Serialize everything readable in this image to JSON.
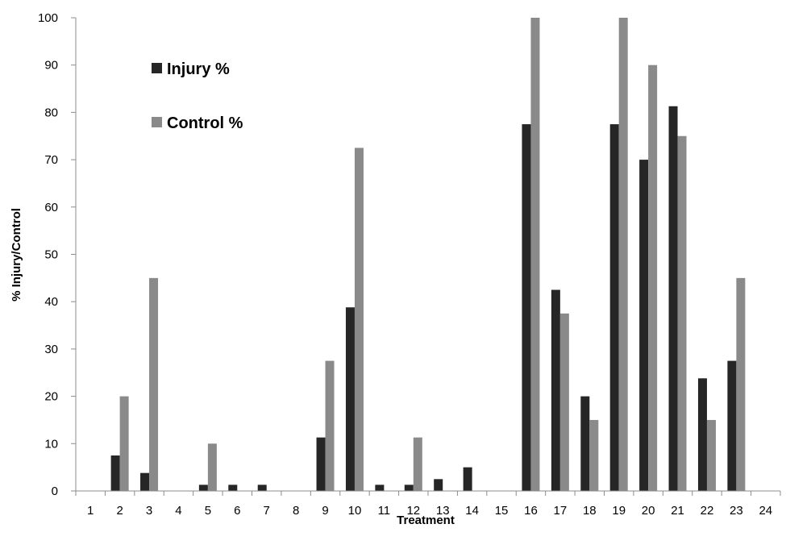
{
  "chart_data": {
    "type": "bar",
    "title": "",
    "xlabel": "Treatment",
    "ylabel": "% Injury/Control",
    "ylim": [
      0,
      100
    ],
    "yticks": [
      "0",
      "10",
      "20",
      "30",
      "40",
      "50",
      "60",
      "70",
      "80",
      "90",
      "100"
    ],
    "grid": false,
    "legend_position": "top-left",
    "categories": [
      "1",
      "2",
      "3",
      "4",
      "5",
      "6",
      "7",
      "8",
      "9",
      "10",
      "11",
      "12",
      "13",
      "14",
      "15",
      "16",
      "17",
      "18",
      "19",
      "20",
      "21",
      "22",
      "23",
      "24"
    ],
    "series": [
      {
        "name": "Injury %",
        "color": "#262626",
        "values": [
          0,
          7.5,
          3.8,
          0,
          1.3,
          1.3,
          1.3,
          0,
          11.3,
          38.8,
          1.3,
          1.3,
          2.5,
          5,
          0,
          77.5,
          42.5,
          20,
          77.5,
          70,
          81.3,
          23.8,
          27.5,
          0
        ]
      },
      {
        "name": "Control %",
        "color": "#8a8a8a",
        "values": [
          0,
          20,
          45,
          0,
          10,
          0,
          0,
          0,
          27.5,
          72.5,
          0,
          11.3,
          0,
          0,
          0,
          100,
          37.5,
          15,
          100,
          90,
          75,
          15,
          45,
          0
        ]
      }
    ]
  }
}
